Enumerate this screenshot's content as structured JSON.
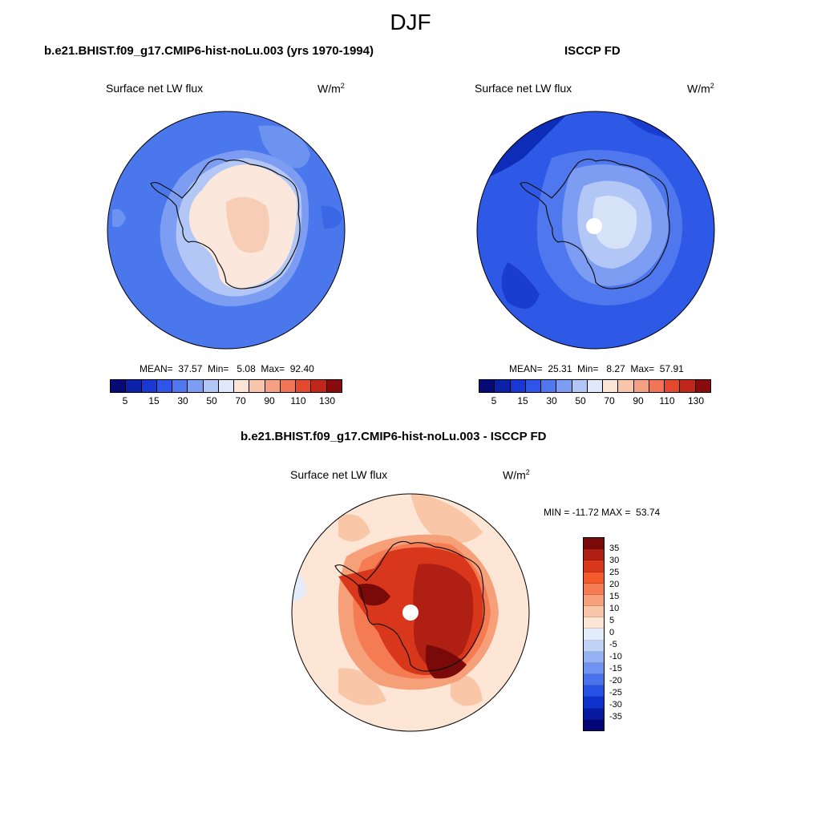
{
  "figure_title": "DJF",
  "panels": {
    "model": {
      "title": "b.e21.BHIST.f09_g17.CMIP6-hist-noLu.003 (yrs 1970-1994)",
      "variable": "Surface net LW flux",
      "unit_base": "W/m",
      "unit_exp": "2",
      "stats": "MEAN=  37.57  Min=   5.08  Max=  92.40"
    },
    "obs": {
      "title": "ISCCP FD",
      "variable": "Surface net LW flux",
      "unit_base": "W/m",
      "unit_exp": "2",
      "stats": "MEAN=  25.31  Min=   8.27  Max=  57.91"
    },
    "diff": {
      "title": "b.e21.BHIST.f09_g17.CMIP6-hist-noLu.003 - ISCCP FD",
      "variable": "Surface net LW flux",
      "unit_base": "W/m",
      "unit_exp": "2",
      "stats": "MIN = -11.72 MAX =  53.74"
    }
  },
  "colorbar_abs": {
    "colors": [
      "#050a75",
      "#0a21a8",
      "#1838d4",
      "#2d55e8",
      "#4f78ee",
      "#7d9df2",
      "#b3c7f6",
      "#e0e9fa",
      "#fce4d4",
      "#f9c6ab",
      "#f5a082",
      "#f07556",
      "#e2492d",
      "#c0261a",
      "#8a0b0b"
    ],
    "ticks": [
      "5",
      "15",
      "30",
      "50",
      "70",
      "90",
      "110",
      "130"
    ]
  },
  "colorbar_diff": {
    "colors": [
      "#7a0a0a",
      "#b01f13",
      "#d8371c",
      "#f45a2c",
      "#f57b52",
      "#f6a079",
      "#f9c6a7",
      "#fde6d6",
      "#e3ecfb",
      "#c0d3f7",
      "#94b1f3",
      "#6f93f0",
      "#4a72ec",
      "#2650e6",
      "#1032cc",
      "#081aa0",
      "#020675"
    ],
    "ticks": [
      "35",
      "30",
      "25",
      "20",
      "15",
      "10",
      "5",
      "0",
      "-5",
      "-10",
      "-15",
      "-20",
      "-25",
      "-30",
      "-35"
    ]
  }
}
